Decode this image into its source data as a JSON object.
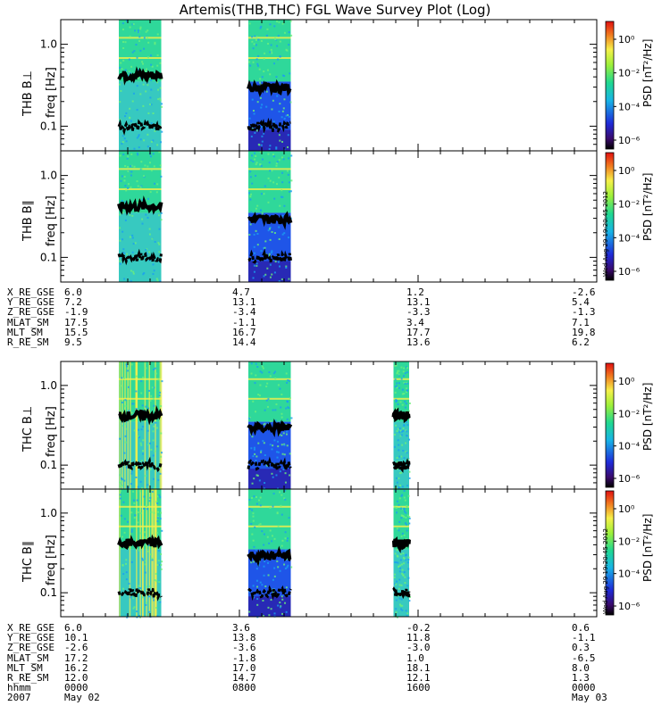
{
  "title": "Artemis(THB,THC) FGL Wave Survey Plot (Log)",
  "colors": {
    "background": "#ffffff",
    "band_green": "#2fd89a",
    "band_blue": "#1f55e8",
    "band_deep": "#2a1ea8",
    "band_yellow": "#f6f04a",
    "trace": "#000000"
  },
  "chart_data": [
    {
      "type": "heatmap",
      "id": "thb-bperp",
      "ylabel_probe": "THB B⊥",
      "ylabel_units": "freq [Hz]",
      "colorbar_label": "PSD [nT²/Hz]",
      "y_scale": "log",
      "ylim": [
        0.05,
        2.0
      ],
      "yticks": [
        "0.1",
        "1.0"
      ],
      "x_range_hours": [
        0,
        24
      ],
      "data_intervals_hours": [
        [
          2.6,
          4.5
        ],
        [
          8.4,
          10.3
        ]
      ],
      "colorbar_ticks": [
        "10⁰",
        "10⁻²",
        "10⁻⁴",
        "10⁻⁶"
      ],
      "timestamp": ""
    },
    {
      "type": "heatmap",
      "id": "thb-bpar",
      "ylabel_probe": "THB B∥",
      "ylabel_units": "freq [Hz]",
      "colorbar_label": "PSD [nT²/Hz]",
      "y_scale": "log",
      "ylim": [
        0.05,
        2.0
      ],
      "yticks": [
        "0.1",
        "1.0"
      ],
      "x_range_hours": [
        0,
        24
      ],
      "data_intervals_hours": [
        [
          2.6,
          4.5
        ],
        [
          8.4,
          10.3
        ]
      ],
      "colorbar_ticks": [
        "10⁰",
        "10⁻²",
        "10⁻⁴",
        "10⁻⁶"
      ],
      "timestamp": "Wed Aug 29 19:20:45 2012"
    },
    {
      "type": "heatmap",
      "id": "thc-bperp",
      "ylabel_probe": "THC B⊥",
      "ylabel_units": "freq [Hz]",
      "colorbar_label": "PSD [nT²/Hz]",
      "y_scale": "log",
      "ylim": [
        0.05,
        2.0
      ],
      "yticks": [
        "0.1",
        "1.0"
      ],
      "x_range_hours": [
        0,
        24
      ],
      "data_intervals_hours": [
        [
          2.6,
          4.5
        ],
        [
          8.4,
          10.3
        ],
        [
          14.9,
          15.6
        ]
      ],
      "colorbar_ticks": [
        "10⁰",
        "10⁻²",
        "10⁻⁴",
        "10⁻⁶"
      ],
      "timestamp": ""
    },
    {
      "type": "heatmap",
      "id": "thc-bpar",
      "ylabel_probe": "THC B∥",
      "ylabel_units": "freq [Hz]",
      "colorbar_label": "PSD [nT²/Hz]",
      "y_scale": "log",
      "ylim": [
        0.05,
        2.0
      ],
      "yticks": [
        "0.1",
        "1.0"
      ],
      "x_range_hours": [
        0,
        24
      ],
      "data_intervals_hours": [
        [
          2.6,
          4.5
        ],
        [
          8.4,
          10.3
        ],
        [
          14.9,
          15.6
        ]
      ],
      "colorbar_ticks": [
        "10⁰",
        "10⁻²",
        "10⁻⁴",
        "10⁻⁶"
      ],
      "timestamp": "Wed Aug 29 19:20:45 2012"
    }
  ],
  "ephem_thb": {
    "rows": [
      {
        "label": "X_RE_GSE",
        "values": [
          "6.0",
          "4.7",
          "1.2",
          "-2.6"
        ]
      },
      {
        "label": "Y_RE_GSE",
        "values": [
          "7.2",
          "13.1",
          "13.1",
          "5.4"
        ]
      },
      {
        "label": "Z_RE_GSE",
        "values": [
          "-1.9",
          "-3.4",
          "-3.3",
          "-1.3"
        ]
      },
      {
        "label": "MLAT_SM",
        "values": [
          "17.5",
          "-1.1",
          "3.4",
          "7.1"
        ]
      },
      {
        "label": "MLT_SM",
        "values": [
          "15.5",
          "16.7",
          "17.7",
          "19.8"
        ]
      },
      {
        "label": "R_RE_SM",
        "values": [
          "9.5",
          "14.4",
          "13.6",
          "6.2"
        ]
      }
    ]
  },
  "ephem_thc": {
    "rows": [
      {
        "label": "X_RE_GSE",
        "values": [
          "6.0",
          "3.6",
          "-0.2",
          "0.6"
        ]
      },
      {
        "label": "Y_RE_GSE",
        "values": [
          "10.1",
          "13.8",
          "11.8",
          "-1.1"
        ]
      },
      {
        "label": "Z_RE_GSE",
        "values": [
          "-2.6",
          "-3.6",
          "-3.0",
          "0.3"
        ]
      },
      {
        "label": "MLAT_SM",
        "values": [
          "17.2",
          "-1.8",
          "1.0",
          "-6.5"
        ]
      },
      {
        "label": "MLT_SM",
        "values": [
          "16.2",
          "17.0",
          "18.1",
          "8.0"
        ]
      },
      {
        "label": "R_RE_SM",
        "values": [
          "12.0",
          "14.7",
          "12.1",
          "1.3"
        ]
      },
      {
        "label": "hhmm",
        "values": [
          "0000",
          "0800",
          "1600",
          "0000"
        ]
      },
      {
        "label": "2007",
        "values": [
          "May 02",
          "",
          "",
          "May 03"
        ]
      }
    ]
  }
}
